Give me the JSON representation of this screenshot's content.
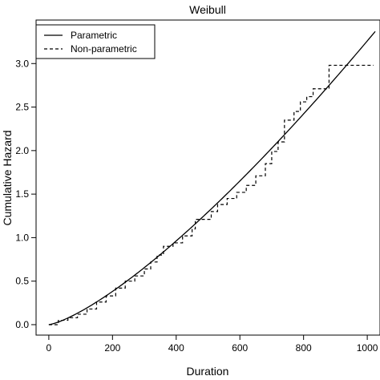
{
  "chart_data": {
    "type": "line",
    "title": "Weibull",
    "xlabel": "Duration",
    "ylabel": "Cumulative Hazard",
    "xlim": [
      -40,
      1040
    ],
    "ylim": [
      -0.12,
      3.5
    ],
    "xticks": [
      "0",
      "200",
      "400",
      "600",
      "800",
      "1000"
    ],
    "xtick_values": [
      0,
      200,
      400,
      600,
      800,
      1000
    ],
    "yticks": [
      "0.0",
      "0.5",
      "1.0",
      "1.5",
      "2.0",
      "2.5",
      "3.0"
    ],
    "ytick_values": [
      0,
      0.5,
      1.0,
      1.5,
      2.0,
      2.5,
      3.0
    ],
    "grid": false,
    "legend_position": "top-left",
    "series": [
      {
        "name": "Parametric",
        "style": "solid",
        "curve": {
          "form": "power",
          "scale": 0.000329,
          "shape": 1.332,
          "x_start": 0,
          "x_end": 1025
        }
      },
      {
        "name": "Non-parametric",
        "style": "dashed",
        "step": true,
        "x": [
          0,
          30,
          60,
          90,
          120,
          150,
          180,
          210,
          240,
          270,
          300,
          320,
          340,
          360,
          390,
          420,
          450,
          460,
          510,
          530,
          560,
          590,
          620,
          650,
          680,
          700,
          720,
          740,
          770,
          790,
          810,
          830,
          870,
          880,
          1020
        ],
        "y": [
          0.0,
          0.05,
          0.08,
          0.12,
          0.18,
          0.26,
          0.33,
          0.42,
          0.5,
          0.56,
          0.64,
          0.72,
          0.8,
          0.9,
          0.94,
          1.02,
          1.1,
          1.21,
          1.3,
          1.38,
          1.45,
          1.52,
          1.6,
          1.71,
          1.85,
          1.99,
          2.1,
          2.35,
          2.45,
          2.56,
          2.62,
          2.71,
          2.71,
          2.98,
          2.98
        ]
      }
    ]
  }
}
